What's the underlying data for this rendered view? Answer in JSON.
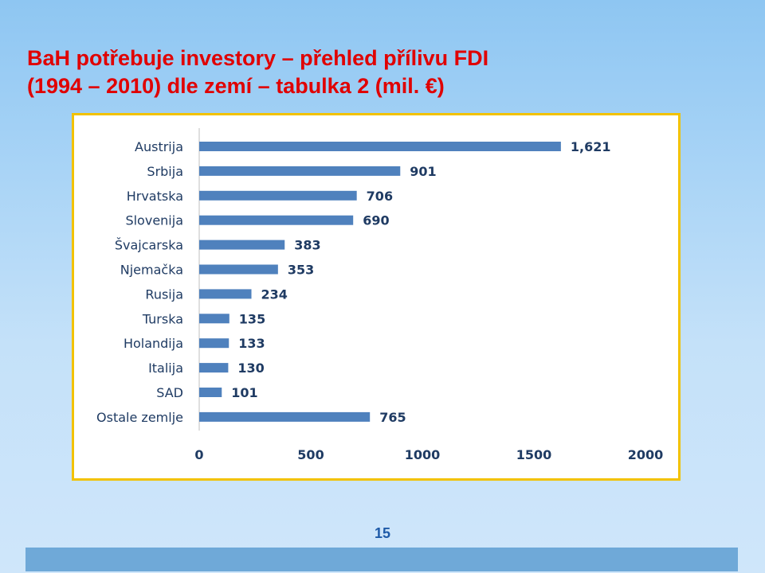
{
  "slide": {
    "title_line1": "BaH potřebuje investory – přehled přílivu FDI",
    "title_line2": "(1994 – 2010) dle zemí – tabulka 2 (mil. €)",
    "page_number": "15",
    "title_color": "#e00000",
    "frame_color": "#f2c200",
    "footer_color": "#6fa9d8"
  },
  "chart_data": {
    "type": "bar",
    "orientation": "horizontal",
    "categories": [
      "Austrija",
      "Srbija",
      "Hrvatska",
      "Slovenija",
      "Švajcarska",
      "Njemačka",
      "Rusija",
      "Turska",
      "Holandija",
      "Italija",
      "SAD",
      "Ostale zemlje"
    ],
    "values": [
      1621,
      901,
      706,
      690,
      383,
      353,
      234,
      135,
      133,
      130,
      101,
      765
    ],
    "value_labels": [
      "1,621",
      "901",
      "706",
      "690",
      "383",
      "353",
      "234",
      "135",
      "133",
      "130",
      "101",
      "765"
    ],
    "xlim": [
      0,
      2000
    ],
    "xticks": [
      0,
      500,
      1000,
      1500,
      2000
    ],
    "xtick_labels": [
      "0",
      "500",
      "1000",
      "1500",
      "2000"
    ],
    "bar_color": "#4f81bd",
    "grid": false,
    "legend": "none"
  }
}
